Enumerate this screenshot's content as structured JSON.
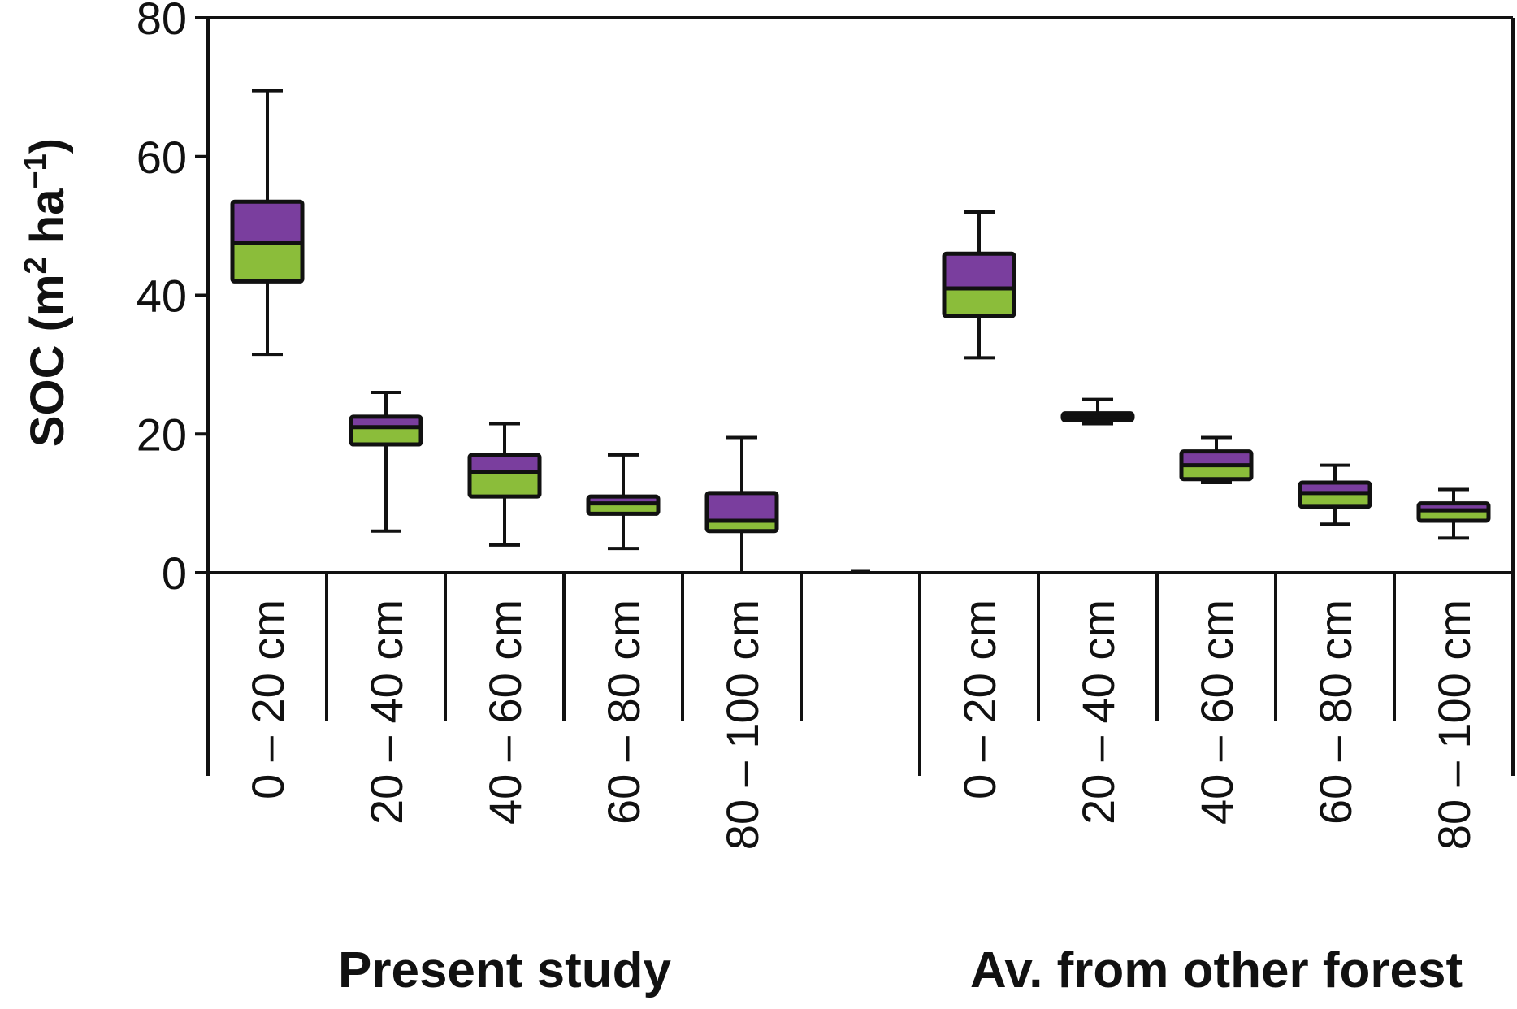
{
  "chart_data": {
    "type": "box",
    "ylabel": {
      "main": "SOC (m",
      "sup1": "2",
      "mid": " ha",
      "sup2": "−1",
      "end": ")"
    },
    "ylim": [
      0,
      80
    ],
    "yticks": [
      "0",
      "20",
      "40",
      "60",
      "80"
    ],
    "colors": {
      "upper": "#7a3e9e",
      "lower": "#8bbd3a",
      "outline": "#111111"
    },
    "groups": [
      {
        "label": "Present study",
        "boxes": [
          {
            "category": "0 – 20 cm",
            "min": 31.5,
            "q1": 42,
            "median": 47.5,
            "q3": 53.5,
            "max": 69.5
          },
          {
            "category": "20 – 40 cm",
            "min": 6,
            "q1": 18.5,
            "median": 21,
            "q3": 22.5,
            "max": 26
          },
          {
            "category": "40 – 60 cm",
            "min": 4,
            "q1": 11,
            "median": 14.5,
            "q3": 17,
            "max": 21.5
          },
          {
            "category": "60 – 80 cm",
            "min": 3.5,
            "q1": 8.5,
            "median": 10,
            "q3": 11,
            "max": 17
          },
          {
            "category": "80 – 100 cm",
            "min": 0,
            "q1": 6,
            "median": 7.5,
            "q3": 11.5,
            "max": 19.5
          }
        ]
      },
      {
        "label": "Av. from other forest",
        "boxes": [
          {
            "category": "0 – 20 cm",
            "min": 31,
            "q1": 37,
            "median": 41,
            "q3": 46,
            "max": 52
          },
          {
            "category": "20 – 40 cm",
            "min": 21.5,
            "q1": 22,
            "median": 22.5,
            "q3": 23,
            "max": 25
          },
          {
            "category": "40 – 60 cm",
            "min": 13,
            "q1": 13.5,
            "median": 15.5,
            "q3": 17.5,
            "max": 19.5
          },
          {
            "category": "60 – 80 cm",
            "min": 7,
            "q1": 9.5,
            "median": 11.5,
            "q3": 13,
            "max": 15.5
          },
          {
            "category": "80 – 100 cm",
            "min": 5,
            "q1": 7.5,
            "median": 9,
            "q3": 10,
            "max": 12
          }
        ]
      }
    ]
  }
}
